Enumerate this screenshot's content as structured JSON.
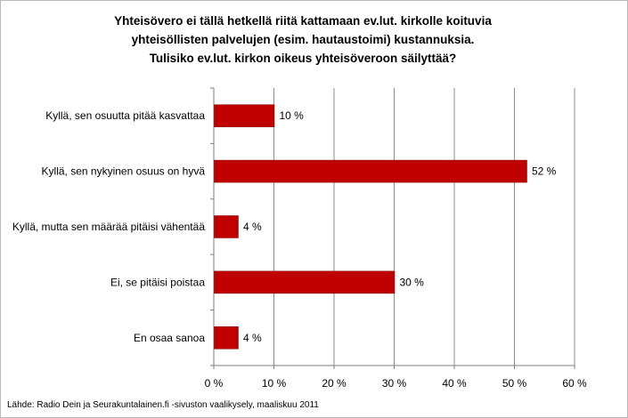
{
  "chart_data": {
    "type": "bar",
    "orientation": "horizontal",
    "title": [
      "Yhteisövero ei tällä hetkellä riitä kattamaan ev.lut. kirkolle koituvia",
      "yhteisöllisten palvelujen (esim. hautaustoimi) kustannuksia.",
      "Tulisiko ev.lut. kirkon oikeus yhteisöveroon säilyttää?"
    ],
    "categories": [
      "Kyllä, sen osuutta pitää kasvattaa",
      "Kyllä, sen nykyinen osuus on hyvä",
      "Kyllä, mutta sen määrää pitäisi vähentää",
      "Ei, se pitäisi poistaa",
      "En osaa sanoa"
    ],
    "values": [
      10,
      52,
      4,
      30,
      4
    ],
    "value_labels": [
      "10 %",
      "52 %",
      "4 %",
      "30 %",
      "4 %"
    ],
    "xlim": [
      0,
      60
    ],
    "xticks": [
      0,
      10,
      20,
      30,
      40,
      50,
      60
    ],
    "xtick_labels": [
      "0 %",
      "10 %",
      "20 %",
      "30 %",
      "40 %",
      "50 %",
      "60 %"
    ],
    "grid": true,
    "legend": "none",
    "bar_color": "#c00000",
    "source": "Lähde: Radio Dein ja  Seurakuntalainen.fi -sivuston vaalikysely, maaliskuu 2011"
  }
}
